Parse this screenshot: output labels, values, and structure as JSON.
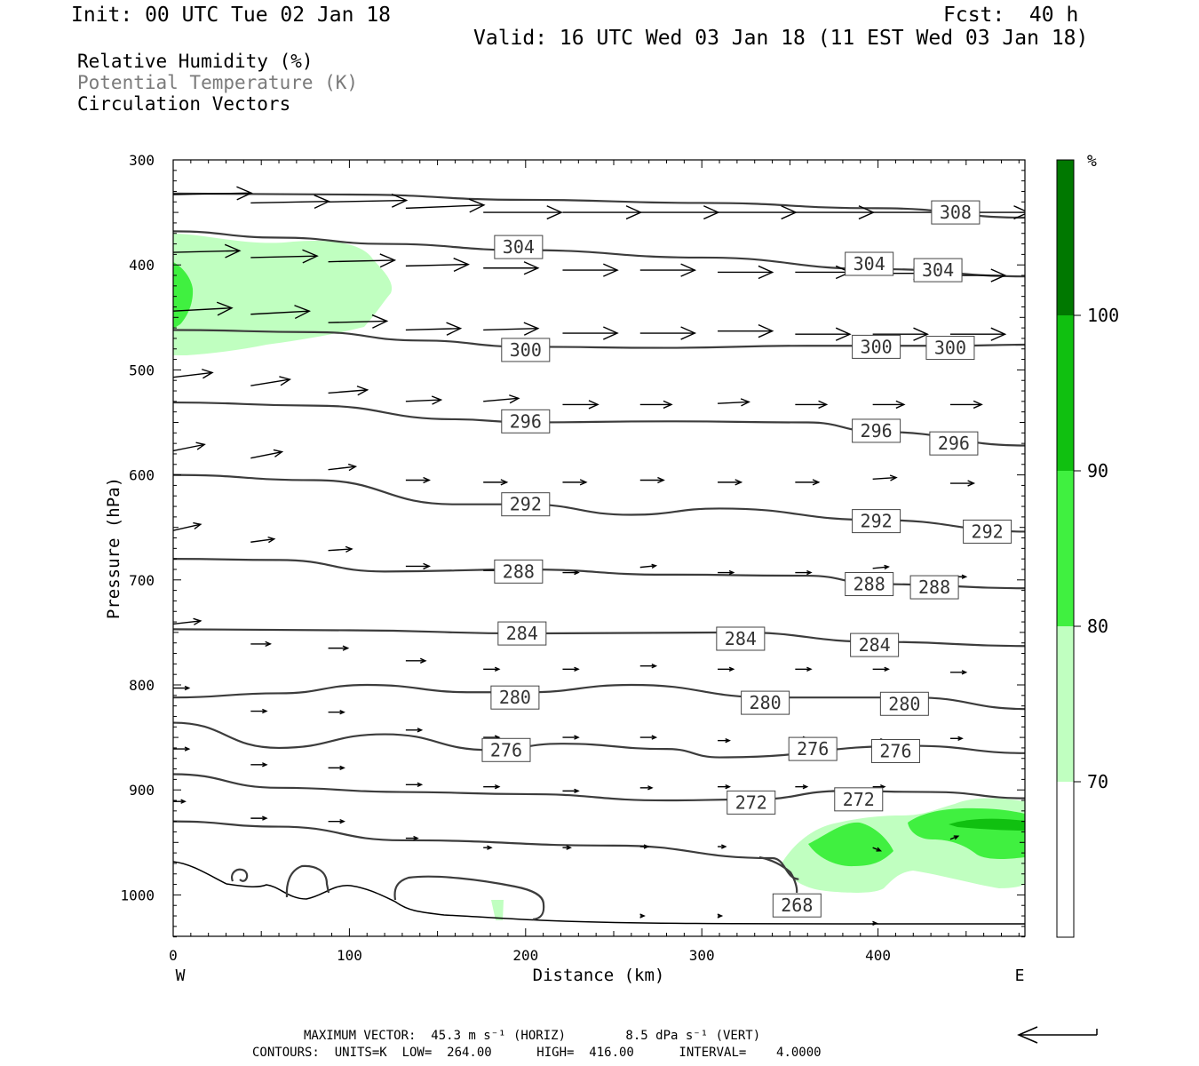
{
  "header": {
    "init": "Init: 00 UTC Tue 02 Jan 18",
    "fcst": "Fcst:  40 h",
    "valid": "Valid: 16 UTC Wed 03 Jan 18 (11 EST Wed 03 Jan 18)"
  },
  "legend_text": {
    "rh": "Relative Humidity (%)",
    "theta": "Potential Temperature (K)",
    "vectors": "Circulation Vectors"
  },
  "footer": {
    "max_vector": "MAXIMUM VECTOR:  45.3 m s⁻¹ (HORIZ)        8.5 dPa s⁻¹ (VERT)",
    "contours": "CONTOURS:  UNITS=K  LOW=  264.00      HIGH=  416.00      INTERVAL=    4.0000"
  },
  "colors": {
    "rh_70": "#c0ffc0",
    "rh_80": "#40f040",
    "rh_90": "#10c010",
    "rh_100": "#007800",
    "contour": "#3c3c3c"
  },
  "chart_data": {
    "type": "cross-section",
    "xlabel": "Distance (km)",
    "ylabel": "Pressure (hPa)",
    "xlim": [
      0,
      485
    ],
    "ylim": [
      1040,
      300
    ],
    "x_ticks": [
      "0",
      "100",
      "200",
      "300",
      "400"
    ],
    "y_ticks": [
      "300",
      "400",
      "500",
      "600",
      "700",
      "800",
      "900",
      "1000"
    ],
    "x_ends": {
      "west": "W",
      "east": "E"
    },
    "colorbar": {
      "unit": "%",
      "levels": [
        "70",
        "80",
        "90",
        "100"
      ],
      "colors": [
        "#ffffff",
        "#c0ffc0",
        "#40f040",
        "#10c010",
        "#007800"
      ]
    },
    "theta_contours": [
      {
        "value": 308,
        "points": [
          [
            0,
            332
          ],
          [
            100,
            333
          ],
          [
            200,
            338
          ],
          [
            300,
            341
          ],
          [
            400,
            346
          ],
          [
            485,
            355
          ]
        ],
        "labels": [
          {
            "text": "308",
            "x": 444,
            "p": 350
          }
        ]
      },
      {
        "value": 304,
        "points": [
          [
            0,
            368
          ],
          [
            60,
            374
          ],
          [
            120,
            380
          ],
          [
            200,
            386
          ],
          [
            300,
            393
          ],
          [
            400,
            404
          ],
          [
            485,
            411
          ]
        ],
        "labels": [
          {
            "text": "304",
            "x": 196,
            "p": 383
          },
          {
            "text": "304",
            "x": 395,
            "p": 399
          },
          {
            "text": "304",
            "x": 434,
            "p": 405
          }
        ]
      },
      {
        "value": 300,
        "points": [
          [
            0,
            462
          ],
          [
            80,
            464
          ],
          [
            140,
            472
          ],
          [
            200,
            478
          ],
          [
            280,
            479
          ],
          [
            360,
            477
          ],
          [
            440,
            477
          ],
          [
            485,
            476
          ]
        ],
        "labels": [
          {
            "text": "300",
            "x": 200,
            "p": 481
          },
          {
            "text": "300",
            "x": 399,
            "p": 478
          },
          {
            "text": "300",
            "x": 441,
            "p": 479
          }
        ]
      },
      {
        "value": 296,
        "points": [
          [
            0,
            531
          ],
          [
            80,
            534
          ],
          [
            160,
            547
          ],
          [
            200,
            550
          ],
          [
            280,
            549
          ],
          [
            360,
            550
          ],
          [
            400,
            559
          ],
          [
            485,
            572
          ]
        ],
        "labels": [
          {
            "text": "296",
            "x": 200,
            "p": 549
          },
          {
            "text": "296",
            "x": 399,
            "p": 558
          },
          {
            "text": "296",
            "x": 443,
            "p": 570
          }
        ]
      },
      {
        "value": 292,
        "points": [
          [
            0,
            600
          ],
          [
            80,
            605
          ],
          [
            160,
            628
          ],
          [
            200,
            628
          ],
          [
            260,
            638
          ],
          [
            310,
            632
          ],
          [
            400,
            643
          ],
          [
            485,
            654
          ]
        ],
        "labels": [
          {
            "text": "292",
            "x": 200,
            "p": 628
          },
          {
            "text": "292",
            "x": 399,
            "p": 644
          },
          {
            "text": "292",
            "x": 462,
            "p": 654
          }
        ]
      },
      {
        "value": 288,
        "points": [
          [
            0,
            680
          ],
          [
            60,
            681
          ],
          [
            120,
            692
          ],
          [
            200,
            690
          ],
          [
            280,
            695
          ],
          [
            360,
            696
          ],
          [
            400,
            704
          ],
          [
            485,
            708
          ]
        ],
        "labels": [
          {
            "text": "288",
            "x": 196,
            "p": 692
          },
          {
            "text": "288",
            "x": 395,
            "p": 704
          },
          {
            "text": "288",
            "x": 432,
            "p": 707
          }
        ]
      },
      {
        "value": 284,
        "points": [
          [
            0,
            747
          ],
          [
            100,
            748
          ],
          [
            200,
            751
          ],
          [
            320,
            750
          ],
          [
            400,
            759
          ],
          [
            485,
            763
          ]
        ],
        "labels": [
          {
            "text": "284",
            "x": 198,
            "p": 751
          },
          {
            "text": "284",
            "x": 322,
            "p": 756
          },
          {
            "text": "284",
            "x": 398,
            "p": 762
          }
        ]
      },
      {
        "value": 280,
        "points": [
          [
            0,
            812
          ],
          [
            60,
            808
          ],
          [
            110,
            800
          ],
          [
            170,
            807
          ],
          [
            200,
            807
          ],
          [
            260,
            800
          ],
          [
            340,
            812
          ],
          [
            420,
            812
          ],
          [
            485,
            823
          ]
        ],
        "labels": [
          {
            "text": "280",
            "x": 194,
            "p": 812
          },
          {
            "text": "280",
            "x": 336,
            "p": 817
          },
          {
            "text": "280",
            "x": 415,
            "p": 818
          }
        ]
      },
      {
        "value": 276,
        "points": [
          [
            0,
            836
          ],
          [
            60,
            860
          ],
          [
            120,
            847
          ],
          [
            180,
            862
          ],
          [
            220,
            856
          ],
          [
            280,
            861
          ],
          [
            310,
            869
          ],
          [
            420,
            858
          ],
          [
            485,
            865
          ]
        ],
        "labels": [
          {
            "text": "276",
            "x": 189,
            "p": 862
          },
          {
            "text": "276",
            "x": 363,
            "p": 861
          },
          {
            "text": "276",
            "x": 410,
            "p": 863
          }
        ]
      },
      {
        "value": 272,
        "points": [
          [
            0,
            885
          ],
          [
            60,
            898
          ],
          [
            130,
            902
          ],
          [
            200,
            904
          ],
          [
            280,
            910
          ],
          [
            330,
            909
          ],
          [
            380,
            901
          ],
          [
            430,
            902
          ],
          [
            485,
            908
          ]
        ],
        "labels": [
          {
            "text": "272",
            "x": 328,
            "p": 912
          },
          {
            "text": "272",
            "x": 389,
            "p": 909
          }
        ]
      },
      {
        "value": 268,
        "points": [
          [
            0,
            930
          ],
          [
            60,
            935
          ],
          [
            130,
            948
          ],
          [
            250,
            953
          ],
          [
            340,
            965
          ],
          [
            355,
            985
          ]
        ],
        "labels": [
          {
            "text": "268",
            "x": 354,
            "p": 1010
          }
        ]
      }
    ],
    "vectors": [
      {
        "x": 0,
        "p": 333,
        "u": 1,
        "w": 0.02
      },
      {
        "x": 44,
        "p": 341,
        "u": 1,
        "w": 0.02
      },
      {
        "x": 88,
        "p": 340,
        "u": 1,
        "w": 0.02
      },
      {
        "x": 132,
        "p": 346,
        "u": 1,
        "w": 0.04
      },
      {
        "x": 176,
        "p": 350,
        "u": 1,
        "w": 0
      },
      {
        "x": 221,
        "p": 350,
        "u": 1,
        "w": 0
      },
      {
        "x": 265,
        "p": 350,
        "u": 1,
        "w": 0
      },
      {
        "x": 309,
        "p": 350,
        "u": 1,
        "w": 0
      },
      {
        "x": 353,
        "p": 350,
        "u": 1,
        "w": 0
      },
      {
        "x": 397,
        "p": 350,
        "u": 1,
        "w": 0
      },
      {
        "x": 441,
        "p": 350,
        "u": 1,
        "w": 0
      },
      {
        "x": 0,
        "p": 388,
        "u": 0.85,
        "w": 0.02
      },
      {
        "x": 44,
        "p": 393,
        "u": 0.85,
        "w": 0.02
      },
      {
        "x": 88,
        "p": 397,
        "u": 0.85,
        "w": 0.02
      },
      {
        "x": 132,
        "p": 401,
        "u": 0.8,
        "w": 0.02
      },
      {
        "x": 176,
        "p": 403,
        "u": 0.7,
        "w": 0
      },
      {
        "x": 221,
        "p": 405,
        "u": 0.7,
        "w": 0
      },
      {
        "x": 265,
        "p": 405,
        "u": 0.7,
        "w": 0
      },
      {
        "x": 309,
        "p": 407,
        "u": 0.7,
        "w": 0
      },
      {
        "x": 353,
        "p": 407,
        "u": 0.7,
        "w": 0
      },
      {
        "x": 397,
        "p": 408,
        "u": 0.7,
        "w": 0
      },
      {
        "x": 441,
        "p": 410,
        "u": 0.7,
        "w": 0
      },
      {
        "x": 0,
        "p": 444,
        "u": 0.75,
        "w": 0.04
      },
      {
        "x": 44,
        "p": 447,
        "u": 0.75,
        "w": 0.04
      },
      {
        "x": 88,
        "p": 455,
        "u": 0.75,
        "w": 0.02
      },
      {
        "x": 132,
        "p": 462,
        "u": 0.7,
        "w": 0.02
      },
      {
        "x": 176,
        "p": 462,
        "u": 0.7,
        "w": 0.02
      },
      {
        "x": 221,
        "p": 465,
        "u": 0.7,
        "w": 0
      },
      {
        "x": 265,
        "p": 465,
        "u": 0.7,
        "w": 0
      },
      {
        "x": 309,
        "p": 463,
        "u": 0.7,
        "w": 0
      },
      {
        "x": 353,
        "p": 466,
        "u": 0.7,
        "w": 0
      },
      {
        "x": 397,
        "p": 466,
        "u": 0.7,
        "w": 0
      },
      {
        "x": 441,
        "p": 466,
        "u": 0.7,
        "w": 0
      },
      {
        "x": 0,
        "p": 507,
        "u": 0.5,
        "w": 0.06
      },
      {
        "x": 44,
        "p": 515,
        "u": 0.5,
        "w": 0.08
      },
      {
        "x": 88,
        "p": 522,
        "u": 0.5,
        "w": 0.04
      },
      {
        "x": 132,
        "p": 530,
        "u": 0.45,
        "w": 0.02
      },
      {
        "x": 176,
        "p": 530,
        "u": 0.45,
        "w": 0.04
      },
      {
        "x": 221,
        "p": 533,
        "u": 0.45,
        "w": 0
      },
      {
        "x": 265,
        "p": 533,
        "u": 0.4,
        "w": 0
      },
      {
        "x": 309,
        "p": 532,
        "u": 0.4,
        "w": 0.02
      },
      {
        "x": 353,
        "p": 533,
        "u": 0.4,
        "w": 0
      },
      {
        "x": 397,
        "p": 533,
        "u": 0.4,
        "w": 0
      },
      {
        "x": 441,
        "p": 533,
        "u": 0.4,
        "w": 0
      },
      {
        "x": 0,
        "p": 577,
        "u": 0.4,
        "w": 0.08
      },
      {
        "x": 44,
        "p": 584,
        "u": 0.4,
        "w": 0.08
      },
      {
        "x": 88,
        "p": 595,
        "u": 0.35,
        "w": 0.04
      },
      {
        "x": 132,
        "p": 605,
        "u": 0.3,
        "w": 0
      },
      {
        "x": 176,
        "p": 607,
        "u": 0.3,
        "w": 0
      },
      {
        "x": 221,
        "p": 607,
        "u": 0.3,
        "w": 0
      },
      {
        "x": 265,
        "p": 605,
        "u": 0.3,
        "w": 0
      },
      {
        "x": 309,
        "p": 607,
        "u": 0.3,
        "w": 0
      },
      {
        "x": 353,
        "p": 607,
        "u": 0.3,
        "w": 0
      },
      {
        "x": 397,
        "p": 604,
        "u": 0.3,
        "w": 0.02
      },
      {
        "x": 441,
        "p": 608,
        "u": 0.3,
        "w": 0
      },
      {
        "x": 0,
        "p": 653,
        "u": 0.35,
        "w": 0.08
      },
      {
        "x": 44,
        "p": 664,
        "u": 0.3,
        "w": 0.04
      },
      {
        "x": 88,
        "p": 672,
        "u": 0.3,
        "w": 0.02
      },
      {
        "x": 132,
        "p": 687,
        "u": 0.3,
        "w": 0
      },
      {
        "x": 176,
        "p": 691,
        "u": 0.2,
        "w": 0
      },
      {
        "x": 221,
        "p": 693,
        "u": 0.2,
        "w": 0
      },
      {
        "x": 265,
        "p": 688,
        "u": 0.2,
        "w": 0.02
      },
      {
        "x": 309,
        "p": 693,
        "u": 0.2,
        "w": 0
      },
      {
        "x": 353,
        "p": 693,
        "u": 0.2,
        "w": 0
      },
      {
        "x": 397,
        "p": 689,
        "u": 0.2,
        "w": 0.02
      },
      {
        "x": 441,
        "p": 697,
        "u": 0.2,
        "w": 0
      },
      {
        "x": 0,
        "p": 742,
        "u": 0.35,
        "w": 0.04
      },
      {
        "x": 44,
        "p": 761,
        "u": 0.25,
        "w": 0
      },
      {
        "x": 88,
        "p": 765,
        "u": 0.25,
        "w": 0
      },
      {
        "x": 132,
        "p": 777,
        "u": 0.25,
        "w": 0
      },
      {
        "x": 176,
        "p": 785,
        "u": 0.2,
        "w": 0
      },
      {
        "x": 221,
        "p": 785,
        "u": 0.2,
        "w": 0
      },
      {
        "x": 265,
        "p": 782,
        "u": 0.2,
        "w": 0
      },
      {
        "x": 309,
        "p": 785,
        "u": 0.2,
        "w": 0
      },
      {
        "x": 353,
        "p": 785,
        "u": 0.2,
        "w": 0
      },
      {
        "x": 397,
        "p": 785,
        "u": 0.2,
        "w": 0
      },
      {
        "x": 441,
        "p": 788,
        "u": 0.2,
        "w": 0
      },
      {
        "x": 0,
        "p": 803,
        "u": 0.2,
        "w": 0
      },
      {
        "x": 44,
        "p": 825,
        "u": 0.2,
        "w": 0
      },
      {
        "x": 88,
        "p": 826,
        "u": 0.2,
        "w": 0
      },
      {
        "x": 132,
        "p": 843,
        "u": 0.2,
        "w": 0
      },
      {
        "x": 176,
        "p": 850,
        "u": 0.2,
        "w": 0
      },
      {
        "x": 221,
        "p": 850,
        "u": 0.2,
        "w": 0
      },
      {
        "x": 265,
        "p": 850,
        "u": 0.2,
        "w": 0
      },
      {
        "x": 309,
        "p": 853,
        "u": 0.15,
        "w": 0
      },
      {
        "x": 353,
        "p": 851,
        "u": 0.15,
        "w": 0
      },
      {
        "x": 397,
        "p": 853,
        "u": 0.15,
        "w": 0
      },
      {
        "x": 441,
        "p": 851,
        "u": 0.15,
        "w": 0
      },
      {
        "x": 0,
        "p": 861,
        "u": 0.2,
        "w": 0
      },
      {
        "x": 44,
        "p": 876,
        "u": 0.2,
        "w": 0
      },
      {
        "x": 88,
        "p": 879,
        "u": 0.2,
        "w": 0
      },
      {
        "x": 132,
        "p": 895,
        "u": 0.2,
        "w": 0
      },
      {
        "x": 176,
        "p": 897,
        "u": 0.2,
        "w": 0
      },
      {
        "x": 221,
        "p": 901,
        "u": 0.2,
        "w": 0
      },
      {
        "x": 265,
        "p": 898,
        "u": 0.15,
        "w": 0
      },
      {
        "x": 309,
        "p": 897,
        "u": 0.15,
        "w": 0
      },
      {
        "x": 353,
        "p": 897,
        "u": 0.15,
        "w": 0
      },
      {
        "x": 397,
        "p": 897,
        "u": 0.15,
        "w": 0
      },
      {
        "x": 0,
        "p": 911,
        "u": 0.15,
        "w": 0
      },
      {
        "x": 44,
        "p": 927,
        "u": 0.2,
        "w": 0
      },
      {
        "x": 88,
        "p": 930,
        "u": 0.2,
        "w": 0
      },
      {
        "x": 132,
        "p": 946,
        "u": 0.15,
        "w": 0
      },
      {
        "x": 176,
        "p": 955,
        "u": 0.1,
        "w": 0
      },
      {
        "x": 221,
        "p": 955,
        "u": 0.1,
        "w": 0
      },
      {
        "x": 265,
        "p": 954,
        "u": 0.1,
        "w": 0
      },
      {
        "x": 309,
        "p": 954,
        "u": 0.1,
        "w": 0
      },
      {
        "x": 397,
        "p": 955,
        "u": 0.1,
        "w": -0.04
      },
      {
        "x": 441,
        "p": 947,
        "u": 0.1,
        "w": 0.04
      },
      {
        "x": 265,
        "p": 1020,
        "u": 0.05,
        "w": 0
      },
      {
        "x": 309,
        "p": 1020,
        "u": 0.05,
        "w": 0
      },
      {
        "x": 397,
        "p": 1027,
        "u": 0.05,
        "w": 0
      }
    ]
  }
}
